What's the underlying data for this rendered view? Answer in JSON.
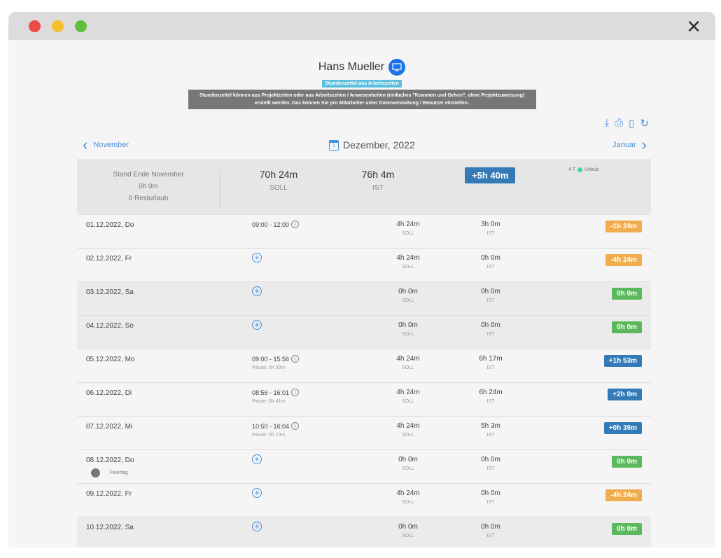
{
  "window": {
    "close_icon": "close-icon",
    "colors": {
      "red": "#ee4b45",
      "yellow": "#f5c02f",
      "green": "#5cc03a"
    }
  },
  "header": {
    "name": "Hans Mueller",
    "badge": "Stundenzettel aus Arbeitszeiten",
    "info": "Stundenzettel können aus Projektzeiten oder aus Arbeitszeiten / Anwesenheiten (einfaches \"Kommen und Gehen\", ohne Projektzuweisung) erstellt werden. Das können Sie pro Mitarbeiter unter Datenverwaltung / Benutzer einstellen."
  },
  "toolbar": [
    "download-icon",
    "print-icon",
    "export-icon",
    "refresh-icon"
  ],
  "nav": {
    "prev": "November",
    "next": "Januar",
    "month": "Dezember, 2022",
    "cal_day": "1"
  },
  "summary": {
    "stand": "Stand Ende November",
    "stand_value": "0h 0m",
    "resturlaub": "0 Resturlaub",
    "soll": "70h 24m",
    "soll_label": "SOLL",
    "ist": "76h 4m",
    "ist_label": "IST",
    "total": "+5h 40m",
    "urlaub_days": "4 T",
    "urlaub_label": "Urlaub"
  },
  "colors": {
    "orange": "#f0ad4e",
    "green": "#5cb85c",
    "blue": "#337ab7"
  },
  "rows": [
    {
      "date": "01.12.2022, Do",
      "time": "09:00 - 12:00",
      "pause": "",
      "soll": "4h 24m",
      "ist": "3h 0m",
      "diff": "-1h 24m",
      "color": "orange",
      "weekend": false
    },
    {
      "date": "02.12.2022, Fr",
      "time": "",
      "pause": "",
      "soll": "4h 24m",
      "ist": "0h 0m",
      "diff": "-4h 24m",
      "color": "orange",
      "weekend": false
    },
    {
      "date": "03.12.2022, Sa",
      "time": "",
      "pause": "",
      "soll": "0h 0m",
      "ist": "0h 0m",
      "diff": "0h 0m",
      "color": "green",
      "weekend": true
    },
    {
      "date": "04.12.2022, So",
      "time": "",
      "pause": "",
      "soll": "0h 0m",
      "ist": "0h 0m",
      "diff": "0h 0m",
      "color": "green",
      "weekend": true
    },
    {
      "date": "05.12.2022, Mo",
      "time": "09:00 - 15:56",
      "pause": "Pause: 0h 39m",
      "soll": "4h 24m",
      "ist": "6h 17m",
      "diff": "+1h 53m",
      "color": "blue",
      "weekend": false
    },
    {
      "date": "06.12.2022, Di",
      "time": "08:56 - 16:01",
      "pause": "Pause: 0h 41m",
      "soll": "4h 24m",
      "ist": "6h 24m",
      "diff": "+2h 0m",
      "color": "blue",
      "weekend": false
    },
    {
      "date": "07.12.2022, Mi",
      "time": "10:50 - 16:04",
      "pause": "Pause: 0h 10m",
      "soll": "4h 24m",
      "ist": "5h 3m",
      "diff": "+0h 39m",
      "color": "blue",
      "weekend": false
    },
    {
      "date": "08.12.2022, Do",
      "time": "",
      "pause": "",
      "holiday": "Feiertag",
      "soll": "0h 0m",
      "ist": "0h 0m",
      "diff": "0h 0m",
      "color": "green",
      "weekend": false
    },
    {
      "date": "09.12.2022, Fr",
      "time": "",
      "pause": "",
      "soll": "4h 24m",
      "ist": "0h 0m",
      "diff": "-4h 24m",
      "color": "orange",
      "weekend": false
    },
    {
      "date": "10.12.2022, Sa",
      "time": "",
      "pause": "",
      "soll": "0h 0m",
      "ist": "0h 0m",
      "diff": "0h 0m",
      "color": "green",
      "weekend": true
    }
  ],
  "labels": {
    "soll": "SOLL",
    "ist": "IST"
  }
}
